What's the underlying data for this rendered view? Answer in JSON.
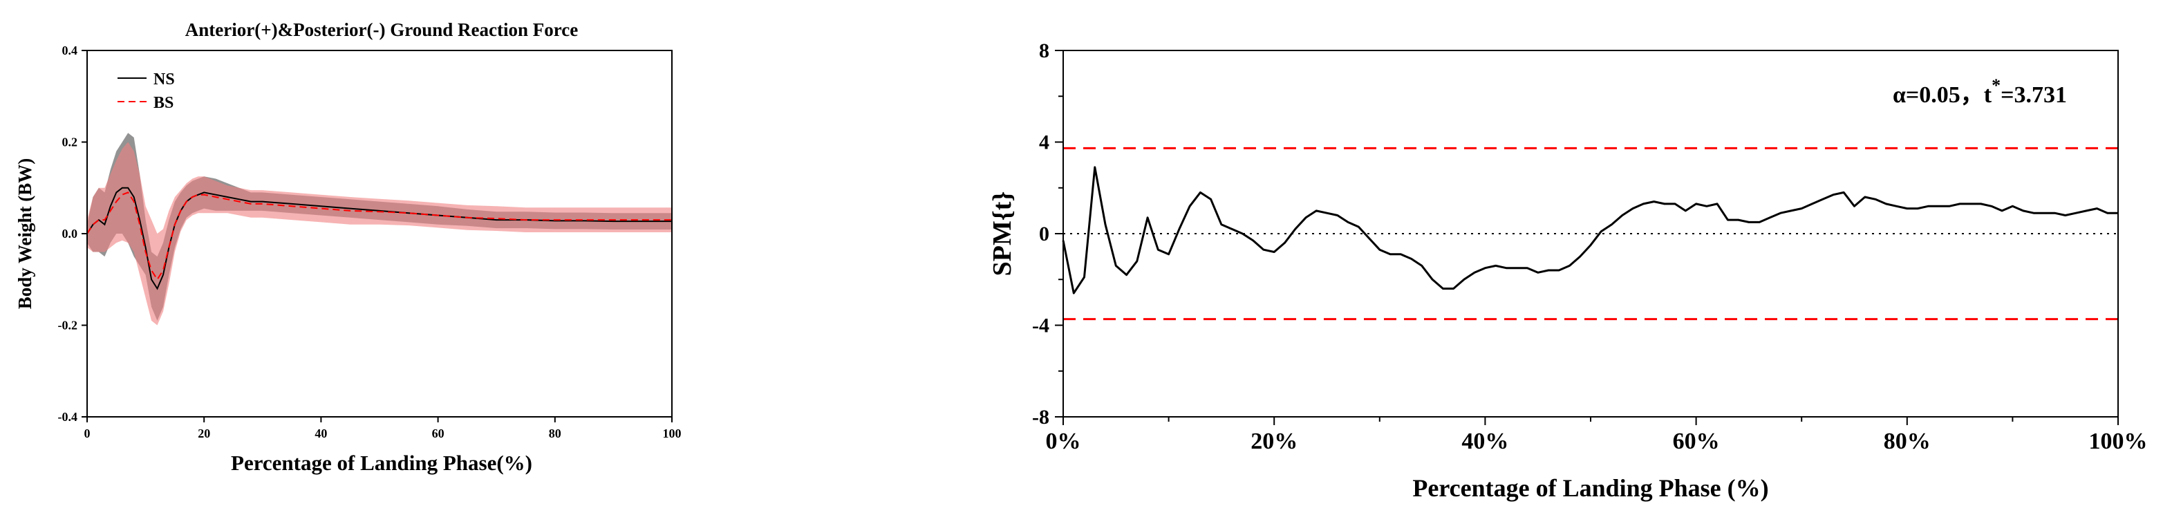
{
  "chart_data": [
    {
      "type": "line",
      "title": "Anterior(+)&Posterior(-) Ground Reaction Force",
      "xlabel": "Percentage of Landing Phase(%)",
      "ylabel": "Body Weight (BW)",
      "xlim": [
        0,
        100
      ],
      "ylim": [
        -0.4,
        0.4
      ],
      "xticks": [
        "0",
        "20",
        "40",
        "60",
        "80",
        "100"
      ],
      "yticks": [
        "-0.4",
        "-0.2",
        "0.0",
        "0.2",
        "0.4"
      ],
      "legend": "top-left",
      "grid": false,
      "x": [
        0,
        1,
        2,
        3,
        4,
        5,
        6,
        7,
        8,
        9,
        10,
        11,
        12,
        13,
        14,
        15,
        16,
        17,
        18,
        19,
        20,
        22,
        24,
        26,
        28,
        30,
        35,
        40,
        45,
        50,
        55,
        60,
        65,
        70,
        75,
        80,
        85,
        90,
        95,
        100
      ],
      "series": [
        {
          "name": "NS",
          "color": "#000000",
          "dash": "solid",
          "band_color": "#808080",
          "values": [
            0.0,
            0.02,
            0.03,
            0.02,
            0.06,
            0.09,
            0.1,
            0.1,
            0.08,
            0.03,
            -0.03,
            -0.1,
            -0.12,
            -0.09,
            -0.03,
            0.02,
            0.05,
            0.07,
            0.08,
            0.085,
            0.09,
            0.085,
            0.08,
            0.075,
            0.07,
            0.07,
            0.065,
            0.06,
            0.055,
            0.05,
            0.045,
            0.04,
            0.035,
            0.03,
            0.03,
            0.028,
            0.028,
            0.027,
            0.027,
            0.027
          ],
          "band": [
            0.02,
            0.06,
            0.07,
            0.07,
            0.08,
            0.09,
            0.1,
            0.12,
            0.13,
            0.1,
            0.06,
            0.06,
            0.07,
            0.07,
            0.06,
            0.05,
            0.04,
            0.035,
            0.035,
            0.035,
            0.035,
            0.035,
            0.03,
            0.025,
            0.02,
            0.02,
            0.02,
            0.02,
            0.02,
            0.02,
            0.02,
            0.02,
            0.018,
            0.018,
            0.018,
            0.018,
            0.018,
            0.018,
            0.018,
            0.018
          ]
        },
        {
          "name": "BS",
          "color": "#ff0000",
          "dash": "dashed",
          "band_color": "#f08080",
          "values": [
            0.0,
            0.02,
            0.03,
            0.03,
            0.05,
            0.07,
            0.085,
            0.09,
            0.07,
            0.02,
            -0.04,
            -0.08,
            -0.1,
            -0.08,
            -0.03,
            0.02,
            0.05,
            0.07,
            0.08,
            0.085,
            0.085,
            0.08,
            0.075,
            0.07,
            0.065,
            0.065,
            0.06,
            0.055,
            0.05,
            0.048,
            0.045,
            0.04,
            0.035,
            0.033,
            0.03,
            0.03,
            0.03,
            0.03,
            0.03,
            0.03
          ],
          "band": [
            0.03,
            0.06,
            0.07,
            0.07,
            0.08,
            0.09,
            0.1,
            0.11,
            0.11,
            0.11,
            0.1,
            0.11,
            0.1,
            0.09,
            0.08,
            0.06,
            0.045,
            0.04,
            0.04,
            0.04,
            0.04,
            0.035,
            0.03,
            0.03,
            0.03,
            0.03,
            0.03,
            0.03,
            0.03,
            0.028,
            0.027,
            0.027,
            0.027,
            0.027,
            0.027,
            0.027,
            0.027,
            0.027,
            0.027,
            0.027
          ]
        }
      ]
    },
    {
      "type": "line",
      "annotation": "α=0.05，t*=3.731",
      "annotation_prefix": "α=0.05，t",
      "annotation_sup": "*",
      "annotation_suffix": "=3.731",
      "xlabel": "Percentage of Landing Phase (%)",
      "ylabel": "SPM{t}",
      "xlim": [
        0,
        100
      ],
      "ylim": [
        -8,
        8
      ],
      "xticks": [
        "0%",
        "20%",
        "40%",
        "60%",
        "80%",
        "100%"
      ],
      "yticks": [
        "-8",
        "-4",
        "0",
        "4",
        "8"
      ],
      "grid": false,
      "threshold": 3.731,
      "threshold_color": "#ff0000",
      "zero_line": "dotted",
      "x": [
        0,
        1,
        2,
        3,
        4,
        5,
        6,
        7,
        8,
        9,
        10,
        11,
        12,
        13,
        14,
        15,
        16,
        17,
        18,
        19,
        20,
        21,
        22,
        23,
        24,
        25,
        26,
        27,
        28,
        29,
        30,
        31,
        32,
        33,
        34,
        35,
        36,
        37,
        38,
        39,
        40,
        41,
        42,
        43,
        44,
        45,
        46,
        47,
        48,
        49,
        50,
        51,
        52,
        53,
        54,
        55,
        56,
        57,
        58,
        59,
        60,
        61,
        62,
        63,
        64,
        65,
        66,
        67,
        68,
        69,
        70,
        71,
        72,
        73,
        74,
        75,
        76,
        77,
        78,
        79,
        80,
        81,
        82,
        83,
        84,
        85,
        86,
        87,
        88,
        89,
        90,
        91,
        92,
        93,
        94,
        95,
        96,
        97,
        98,
        99,
        100
      ],
      "values": [
        -0.3,
        -2.6,
        -1.9,
        2.9,
        0.4,
        -1.4,
        -1.8,
        -1.2,
        0.7,
        -0.7,
        -0.9,
        0.2,
        1.2,
        1.8,
        1.5,
        0.4,
        0.2,
        0.0,
        -0.3,
        -0.7,
        -0.8,
        -0.4,
        0.2,
        0.7,
        1.0,
        0.9,
        0.8,
        0.5,
        0.3,
        -0.2,
        -0.7,
        -0.9,
        -0.9,
        -1.1,
        -1.4,
        -2.0,
        -2.4,
        -2.4,
        -2.0,
        -1.7,
        -1.5,
        -1.4,
        -1.5,
        -1.5,
        -1.5,
        -1.7,
        -1.6,
        -1.6,
        -1.4,
        -1.0,
        -0.5,
        0.1,
        0.4,
        0.8,
        1.1,
        1.3,
        1.4,
        1.3,
        1.3,
        1.0,
        1.3,
        1.2,
        1.3,
        0.6,
        0.6,
        0.5,
        0.5,
        0.7,
        0.9,
        1.0,
        1.1,
        1.3,
        1.5,
        1.7,
        1.8,
        1.2,
        1.6,
        1.5,
        1.3,
        1.2,
        1.1,
        1.1,
        1.2,
        1.2,
        1.2,
        1.3,
        1.3,
        1.3,
        1.2,
        1.0,
        1.2,
        1.0,
        0.9,
        0.9,
        0.9,
        0.8,
        0.9,
        1.0,
        1.1,
        0.9,
        0.9
      ]
    }
  ]
}
